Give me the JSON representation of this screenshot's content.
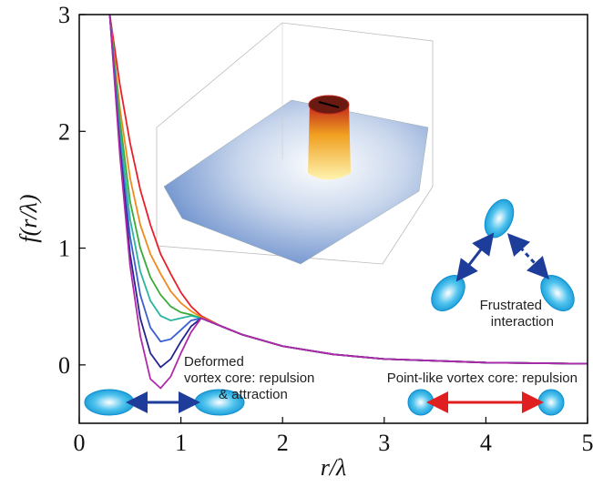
{
  "chart_data": {
    "type": "line",
    "x_label": "r/λ",
    "y_label": "f(r/λ)",
    "x": [
      0.3,
      0.4,
      0.5,
      0.6,
      0.7,
      0.8,
      0.9,
      1.0,
      1.1,
      1.2,
      1.4,
      1.6,
      2.0,
      2.5,
      3,
      4,
      5
    ],
    "series": [
      {
        "color": "#e8202a",
        "values": [
          3,
          2.4,
          1.9,
          1.5,
          1.2,
          0.95,
          0.78,
          0.62,
          0.5,
          0.42,
          0.33,
          0.26,
          0.16,
          0.09,
          0.05,
          0.02,
          0.01
        ]
      },
      {
        "color": "#f08a1c",
        "values": [
          3,
          2.2,
          1.6,
          1.2,
          0.95,
          0.78,
          0.63,
          0.53,
          0.46,
          0.41,
          0.33,
          0.26,
          0.16,
          0.09,
          0.05,
          0.02,
          0.01
        ]
      },
      {
        "color": "#3aaa3a",
        "values": [
          3,
          2.1,
          1.4,
          1.0,
          0.75,
          0.6,
          0.5,
          0.45,
          0.43,
          0.4,
          0.33,
          0.26,
          0.16,
          0.09,
          0.05,
          0.02,
          0.01
        ]
      },
      {
        "color": "#2ab5a0",
        "values": [
          3,
          2.0,
          1.25,
          0.8,
          0.55,
          0.42,
          0.38,
          0.4,
          0.42,
          0.4,
          0.33,
          0.26,
          0.16,
          0.09,
          0.05,
          0.02,
          0.01
        ]
      },
      {
        "color": "#3a5fcf",
        "values": [
          3,
          1.9,
          1.1,
          0.6,
          0.32,
          0.2,
          0.22,
          0.3,
          0.38,
          0.4,
          0.33,
          0.26,
          0.16,
          0.09,
          0.05,
          0.02,
          0.01
        ]
      },
      {
        "color": "#24258f",
        "values": [
          3,
          1.85,
          0.95,
          0.4,
          0.1,
          -0.02,
          0.05,
          0.2,
          0.33,
          0.4,
          0.33,
          0.26,
          0.16,
          0.09,
          0.05,
          0.02,
          0.01
        ]
      },
      {
        "color": "#b02aa8",
        "values": [
          3,
          1.8,
          0.85,
          0.25,
          -0.12,
          -0.2,
          -0.1,
          0.1,
          0.28,
          0.4,
          0.33,
          0.26,
          0.16,
          0.09,
          0.05,
          0.02,
          0.01
        ]
      }
    ],
    "xlim": [
      0,
      5
    ],
    "ylim": [
      -0.5,
      3
    ],
    "xticks": [
      0,
      1,
      2,
      3,
      4,
      5
    ],
    "yticks": [
      0,
      1,
      2,
      3
    ],
    "annotations": [
      "Deformed",
      "vortex core: repulsion",
      "& attraction",
      "Point-like vortex core: repulsion",
      "Frustrated",
      "interaction"
    ]
  }
}
